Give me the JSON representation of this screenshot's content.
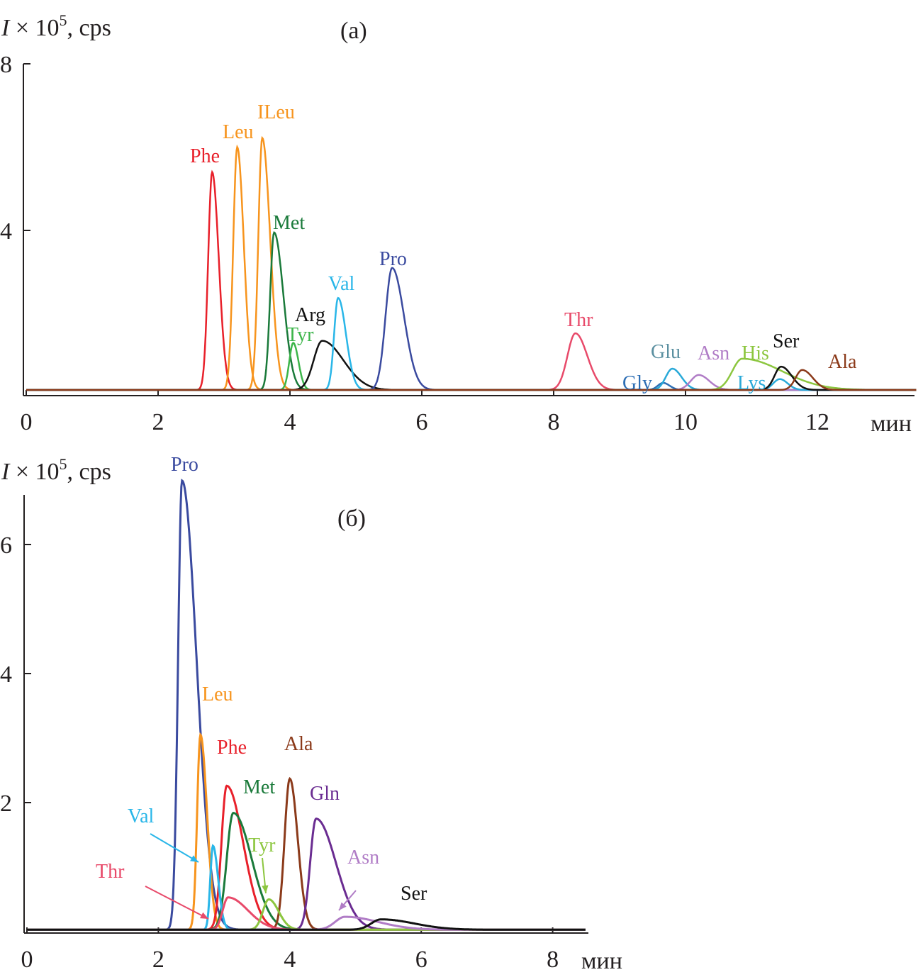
{
  "chart_data": [
    {
      "type": "line",
      "panel_label": "(a)",
      "ylabel_italic": "I",
      "ylabel_rest": " × 10",
      "ylabel_sup": "5",
      "ylabel_unit": ", cps",
      "xlabel": "мин",
      "xlim": [
        0,
        13.5
      ],
      "ylim": [
        0,
        8
      ],
      "xticks": [
        0,
        2,
        4,
        6,
        8,
        10,
        12
      ],
      "yticks": [
        4,
        8
      ],
      "grid": false,
      "baseline": 0.17,
      "series": [
        {
          "name": "Phe",
          "color": "#e8202a",
          "peak_x": 2.82,
          "peak_y": 5.4
        },
        {
          "name": "Leu",
          "color": "#f7941d",
          "peak_x": 3.2,
          "peak_y": 6.0
        },
        {
          "name": "ILeu",
          "color": "#f7941d",
          "peak_x": 3.58,
          "peak_y": 6.22
        },
        {
          "name": "Met",
          "color": "#1a7a3a",
          "peak_x": 3.76,
          "peak_y": 3.95
        },
        {
          "name": "Tyr",
          "color": "#3cb54a",
          "peak_x": 4.05,
          "peak_y": 1.3
        },
        {
          "name": "Arg",
          "color": "#111111",
          "peak_x": 4.49,
          "peak_y": 1.35
        },
        {
          "name": "Val",
          "color": "#29b6e8",
          "peak_x": 4.73,
          "peak_y": 2.38
        },
        {
          "name": "Pro",
          "color": "#3a4a9f",
          "peak_x": 5.55,
          "peak_y": 3.1
        },
        {
          "name": "Thr",
          "color": "#e84a6a",
          "peak_x": 8.33,
          "peak_y": 1.53
        },
        {
          "name": "Gly",
          "color": "#2e6fb5",
          "peak_x": 9.66,
          "peak_y": 0.34
        },
        {
          "name": "Glu",
          "color": "#29a9d8",
          "label_color": "#5a8fa0",
          "peak_x": 9.8,
          "peak_y": 0.68
        },
        {
          "name": "Asn",
          "color": "#b07cc6",
          "peak_x": 10.2,
          "peak_y": 0.53
        },
        {
          "name": "His",
          "color": "#8cc63f",
          "peak_x": 10.86,
          "peak_y": 0.92
        },
        {
          "name": "Lys",
          "color": "#29a9d8",
          "peak_x": 11.43,
          "peak_y": 0.43
        },
        {
          "name": "Ser",
          "color": "#111111",
          "peak_x": 11.45,
          "peak_y": 0.73
        },
        {
          "name": "Ala",
          "color": "#8b3a1a",
          "peak_x": 11.77,
          "peak_y": 0.65
        }
      ]
    },
    {
      "type": "line",
      "panel_label": "(б)",
      "ylabel_italic": "I",
      "ylabel_rest": " × 10",
      "ylabel_sup": "5",
      "ylabel_unit": ", cps",
      "xlabel": "мин",
      "xlim": [
        0,
        8.5
      ],
      "ylim": [
        0,
        6.8
      ],
      "xticks": [
        0,
        2,
        4,
        6,
        8
      ],
      "yticks": [
        2,
        4,
        6
      ],
      "grid": false,
      "baseline": 0.03,
      "series": [
        {
          "name": "Pro",
          "color": "#3a4a9f",
          "peak_x": 2.36,
          "peak_y": 6.99
        },
        {
          "name": "Leu",
          "color": "#f7941d",
          "peak_x": 2.64,
          "peak_y": 3.05
        },
        {
          "name": "Phe",
          "color": "#e8202a",
          "peak_x": 3.04,
          "peak_y": 2.26
        },
        {
          "name": "Met",
          "color": "#1a7a3a",
          "peak_x": 3.14,
          "peak_y": 1.84
        },
        {
          "name": "Ala",
          "color": "#8b3a1a",
          "peak_x": 4.0,
          "peak_y": 2.37
        },
        {
          "name": "Gln",
          "color": "#6a2c91",
          "peak_x": 4.4,
          "peak_y": 1.75
        },
        {
          "name": "Val",
          "color": "#29b6e8",
          "peak_x": 2.83,
          "peak_y": 1.33
        },
        {
          "name": "Thr",
          "color": "#e84a6a",
          "peak_x": 3.06,
          "peak_y": 0.53
        },
        {
          "name": "Tyr",
          "color": "#8cc63f",
          "peak_x": 3.68,
          "peak_y": 0.5
        },
        {
          "name": "Asn",
          "color": "#b07cc6",
          "peak_x": 4.84,
          "peak_y": 0.23
        },
        {
          "name": "Ser",
          "color": "#111111",
          "peak_x": 5.39,
          "peak_y": 0.19
        }
      ]
    }
  ]
}
